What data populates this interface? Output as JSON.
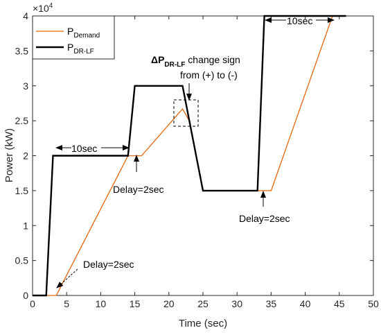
{
  "chart_data": {
    "type": "line",
    "title": "",
    "xlabel": "Time (sec)",
    "ylabel": "Power (kW)",
    "xlim": [
      0,
      50
    ],
    "ylim": [
      0,
      40000
    ],
    "x_ticks": [
      0,
      5,
      10,
      15,
      20,
      25,
      30,
      35,
      40,
      45,
      50
    ],
    "y_ticks": [
      0,
      5000,
      10000,
      15000,
      20000,
      25000,
      30000,
      35000,
      40000
    ],
    "y_tick_labels": [
      "0",
      "0.5",
      "1",
      "1.5",
      "2",
      "2.5",
      "3",
      "3.5",
      "4"
    ],
    "y_exponent_base": "×10",
    "y_exponent_power": "4",
    "grid": false,
    "legend": "top-left",
    "series": [
      {
        "name_main": "P",
        "name_sub": "Demand",
        "color": "#e8650a",
        "x": [
          0,
          3.5,
          4,
          14,
          16,
          22,
          23,
          25,
          33,
          35,
          44,
          46
        ],
        "y": [
          0,
          0,
          1000,
          20000,
          20000,
          26700,
          25000,
          15000,
          15000,
          15000,
          40000,
          40000
        ]
      },
      {
        "name_main": "P",
        "name_sub": "DR-LF",
        "color": "#000000",
        "x": [
          0,
          2,
          3,
          14,
          15,
          22,
          25,
          33,
          34,
          46
        ],
        "y": [
          0,
          0,
          20000,
          20000,
          30000,
          30000,
          15000,
          15000,
          40000,
          40000
        ]
      }
    ],
    "annotations": {
      "delta_main": "ΔP",
      "delta_sub": "DR-LF",
      "delta_rest": " change sign",
      "sign_change": "from (+) to (-)",
      "delay_1": "Delay=2sec",
      "delay_2": "Delay=2sec",
      "delay_3": "Delay=2sec",
      "span_1": "10sec",
      "span_2": "10sec"
    }
  }
}
